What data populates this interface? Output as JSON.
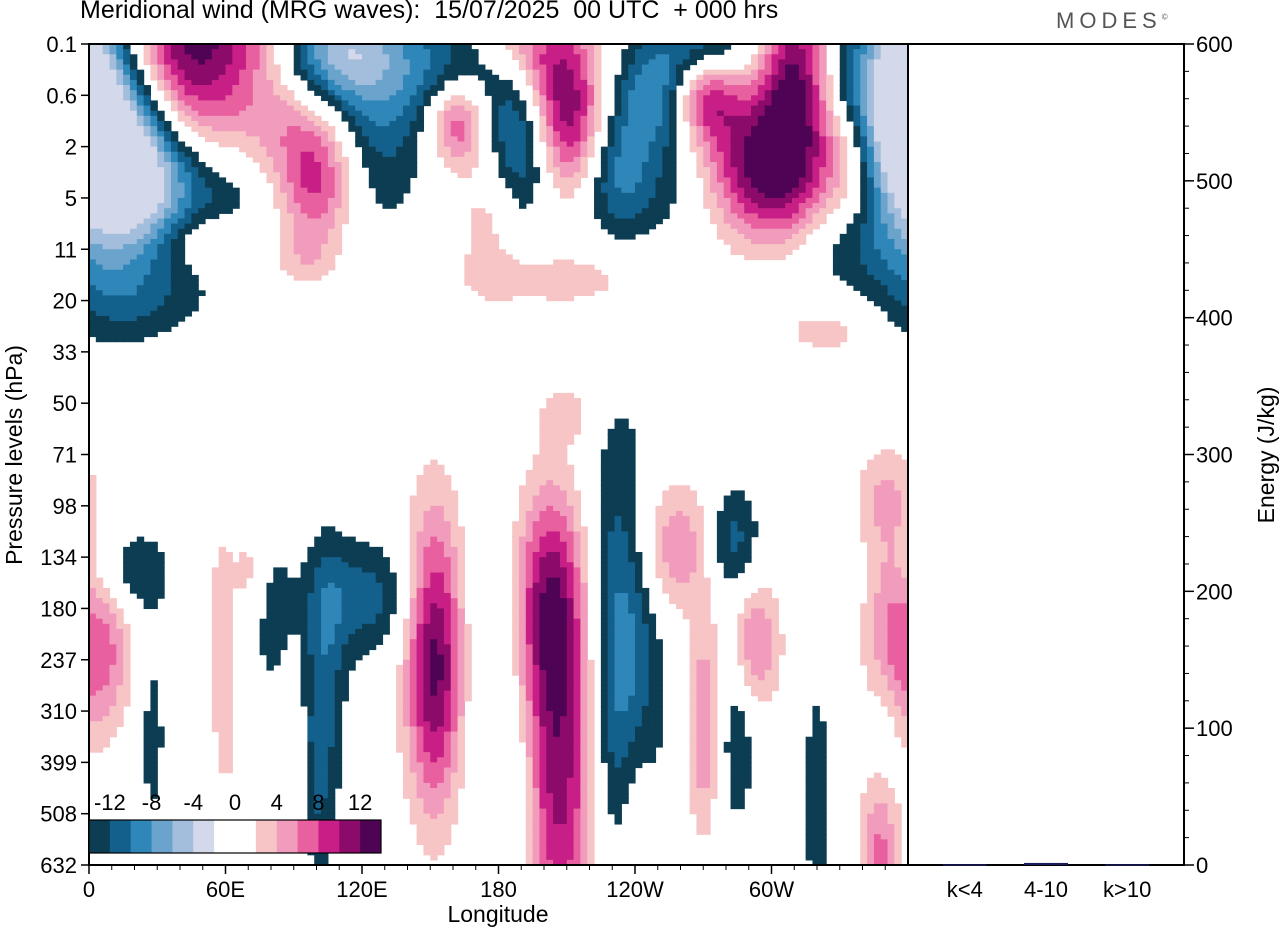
{
  "header": {
    "title": "Meridional wind (MRG waves):  15/07/2025  00 UTC  + 000 hrs",
    "brand": "MODES"
  },
  "colors": {
    "negative": [
      "#0d3d52",
      "#13608c",
      "#2f86b8",
      "#6aa3cc",
      "#a3bedc",
      "#d3d9ea"
    ],
    "zero": "#ffffff",
    "positive": [
      "#f7c5c5",
      "#f29cbd",
      "#e8609f",
      "#c81f86",
      "#8c0a6a",
      "#4e0355"
    ],
    "energy_bar": "#1a1a5a"
  },
  "chart_data": [
    {
      "type": "heatmap",
      "title": "Meridional wind (MRG waves):  15/07/2025  00 UTC  + 000 hrs",
      "xlabel": "Longitude",
      "ylabel": "Pressure levels (hPa)",
      "x_ticks": [
        "0",
        "60E",
        "120E",
        "180",
        "120W",
        "60W"
      ],
      "x_range_deg": [
        0,
        360
      ],
      "y_ticks": [
        "0.1",
        "0.6",
        "2",
        "5",
        "11",
        "20",
        "33",
        "50",
        "71",
        "98",
        "134",
        "180",
        "237",
        "310",
        "399",
        "508",
        "632"
      ],
      "colorbar": {
        "labels": [
          "-12",
          "-8",
          "-4",
          "0",
          "4",
          "8",
          "12"
        ],
        "levels": [
          -14,
          -12,
          -10,
          -8,
          -6,
          -4,
          -2,
          2,
          4,
          6,
          8,
          10,
          12,
          14
        ]
      },
      "features": [
        {
          "lon": 10,
          "lev": 1.5,
          "val": -15,
          "rx": 14,
          "ry": 1.8
        },
        {
          "lon": 27,
          "lev": 2.2,
          "val": -7,
          "rx": 12,
          "ry": 1.2
        },
        {
          "lon": 42,
          "lev": 2.9,
          "val": -6,
          "rx": 25,
          "ry": 0.9
        },
        {
          "lon": 65,
          "lev": 0.7,
          "val": -3,
          "rx": 18,
          "ry": 0.8
        },
        {
          "lon": 50,
          "lev": 0.2,
          "val": 15,
          "rx": 35,
          "ry": 1.3
        },
        {
          "lon": 105,
          "lev": 0.15,
          "val": -13,
          "rx": 20,
          "ry": 0.8
        },
        {
          "lon": 125,
          "lev": 1.3,
          "val": -5,
          "rx": 15,
          "ry": 1.6
        },
        {
          "lon": 95,
          "lev": 1.6,
          "val": 3,
          "rx": 15,
          "ry": 0.8
        },
        {
          "lon": 100,
          "lev": 2.8,
          "val": 8,
          "rx": 12,
          "ry": 0.8
        },
        {
          "lon": 158,
          "lev": 0.6,
          "val": -6,
          "rx": 18,
          "ry": 1.0
        },
        {
          "lon": 162,
          "lev": 1.5,
          "val": 11,
          "rx": 10,
          "ry": 0.6
        },
        {
          "lon": 180,
          "lev": 1.6,
          "val": -3,
          "rx": 12,
          "ry": 0.8
        },
        {
          "lon": 192,
          "lev": 0.0,
          "val": 4,
          "rx": 20,
          "ry": 0.5
        },
        {
          "lon": 192,
          "lev": 2.0,
          "val": -6,
          "rx": 10,
          "ry": 1.0
        },
        {
          "lon": 212,
          "lev": 1.8,
          "val": 10,
          "rx": 12,
          "ry": 1.0
        },
        {
          "lon": 205,
          "lev": 0.7,
          "val": 6,
          "rx": 12,
          "ry": 0.8
        },
        {
          "lon": 230,
          "lev": 2.3,
          "val": -6,
          "rx": 12,
          "ry": 0.8
        },
        {
          "lon": 250,
          "lev": 1.0,
          "val": -8,
          "rx": 14,
          "ry": 0.8
        },
        {
          "lon": 270,
          "lev": 1.0,
          "val": 10,
          "rx": 10,
          "ry": 0.6
        },
        {
          "lon": 272,
          "lev": 0.0,
          "val": -6,
          "rx": 14,
          "ry": 0.6
        },
        {
          "lon": 292,
          "lev": 2.1,
          "val": 10,
          "rx": 16,
          "ry": 1.0
        },
        {
          "lon": 310,
          "lev": 0.8,
          "val": 11,
          "rx": 10,
          "ry": 1.5
        },
        {
          "lon": 300,
          "lev": 3.0,
          "val": 4,
          "rx": 15,
          "ry": 0.8
        },
        {
          "lon": 355,
          "lev": 1.0,
          "val": -15,
          "rx": 12,
          "ry": 1.5
        },
        {
          "lon": 335,
          "lev": 0.6,
          "val": -4,
          "rx": 8,
          "ry": 0.8
        },
        {
          "lon": 330,
          "lev": 2.3,
          "val": 4,
          "rx": 10,
          "ry": 0.8
        },
        {
          "lon": 50,
          "lev": 3.8,
          "val": 4,
          "rx": 14,
          "ry": 0.4
        },
        {
          "lon": 95,
          "lev": 4.2,
          "val": 3,
          "rx": 10,
          "ry": 0.4
        },
        {
          "lon": 175,
          "lev": 3.2,
          "val": 3,
          "rx": 10,
          "ry": 1.2
        },
        {
          "lon": 210,
          "lev": 4.6,
          "val": 3,
          "rx": 30,
          "ry": 0.4
        },
        {
          "lon": 20,
          "lev": 5.0,
          "val": -3,
          "rx": 25,
          "ry": 0.6
        },
        {
          "lon": 335,
          "lev": 4.0,
          "val": -3,
          "rx": 20,
          "ry": 0.6
        },
        {
          "lon": 240,
          "lev": 3.0,
          "val": -2.5,
          "rx": 25,
          "ry": 0.7
        },
        {
          "lon": 325,
          "lev": 5.6,
          "val": 3,
          "rx": 15,
          "ry": 0.35
        },
        {
          "lon": 210,
          "lev": 7.2,
          "val": 3,
          "rx": 8,
          "ry": 0.4
        },
        {
          "lon": 350,
          "lev": 8.8,
          "val": 4,
          "rx": 10,
          "ry": 0.7
        },
        {
          "lon": 20,
          "lev": 10.3,
          "val": -4,
          "rx": 12,
          "ry": 0.6
        },
        {
          "lon": 70,
          "lev": 10.3,
          "val": 3,
          "rx": 5,
          "ry": 0.6
        },
        {
          "lon": 120,
          "lev": 10.8,
          "val": -5,
          "rx": 18,
          "ry": 0.8
        },
        {
          "lon": 152,
          "lev": 12.0,
          "val": 13,
          "rx": 9,
          "ry": 2.0
        },
        {
          "lon": 178,
          "lev": 12.5,
          "val": -3,
          "rx": 10,
          "ry": 2.5
        },
        {
          "lon": 208,
          "lev": 14.0,
          "val": 12,
          "rx": 15,
          "ry": 2.8
        },
        {
          "lon": 203,
          "lev": 10.8,
          "val": 8,
          "rx": 11,
          "ry": 1.5
        },
        {
          "lon": 232,
          "lev": 12.5,
          "val": -10,
          "rx": 12,
          "ry": 3.0
        },
        {
          "lon": 257,
          "lev": 9.8,
          "val": 6,
          "rx": 12,
          "ry": 0.9
        },
        {
          "lon": 283,
          "lev": 9.7,
          "val": -5,
          "rx": 8,
          "ry": 0.8
        },
        {
          "lon": 292,
          "lev": 11.7,
          "val": 7,
          "rx": 8,
          "ry": 0.9
        },
        {
          "lon": 270,
          "lev": 13.3,
          "val": 6,
          "rx": 5,
          "ry": 1.5
        },
        {
          "lon": 285,
          "lev": 13.2,
          "val": -4,
          "rx": 6,
          "ry": 1.5
        },
        {
          "lon": 352,
          "lev": 12.0,
          "val": 8,
          "rx": 8,
          "ry": 1.5
        },
        {
          "lon": 350,
          "lev": 13.4,
          "val": -6,
          "rx": 6,
          "ry": 1.2
        },
        {
          "lon": 348,
          "lev": 15.6,
          "val": 7,
          "rx": 6,
          "ry": 1.3
        },
        {
          "lon": 8,
          "lev": 11.8,
          "val": 6,
          "rx": 8,
          "ry": 1.1
        },
        {
          "lon": 28,
          "lev": 13.5,
          "val": -3,
          "rx": 4,
          "ry": 1.4
        },
        {
          "lon": 80,
          "lev": 11.2,
          "val": -2.5,
          "rx": 7,
          "ry": 1.3
        },
        {
          "lon": 100,
          "lev": 14.0,
          "val": -3,
          "rx": 4,
          "ry": 1.8
        },
        {
          "lon": 190,
          "lev": 14.5,
          "val": -4,
          "rx": 7,
          "ry": 1.8
        },
        {
          "lon": 105,
          "lev": 12.5,
          "val": -4,
          "rx": 6,
          "ry": 2.0
        },
        {
          "lon": 58,
          "lev": 11.0,
          "val": 3,
          "rx": 4,
          "ry": 1.3
        },
        {
          "lon": 60,
          "lev": 13.3,
          "val": 3,
          "rx": 4,
          "ry": 1.0
        },
        {
          "lon": 240,
          "lev": 15.0,
          "val": 4,
          "rx": 6,
          "ry": 1.5
        },
        {
          "lon": 320,
          "lev": 14.7,
          "val": -4,
          "rx": 4,
          "ry": 1.5
        }
      ]
    },
    {
      "type": "bar",
      "ylabel": "Energy (J/kg)",
      "categories": [
        "k<4",
        "4-10",
        "k>10"
      ],
      "values": [
        0.5,
        1.5,
        0.5
      ],
      "ylim": [
        0,
        600
      ],
      "y_ticks": [
        "0",
        "100",
        "200",
        "300",
        "400",
        "500",
        "600"
      ]
    }
  ]
}
